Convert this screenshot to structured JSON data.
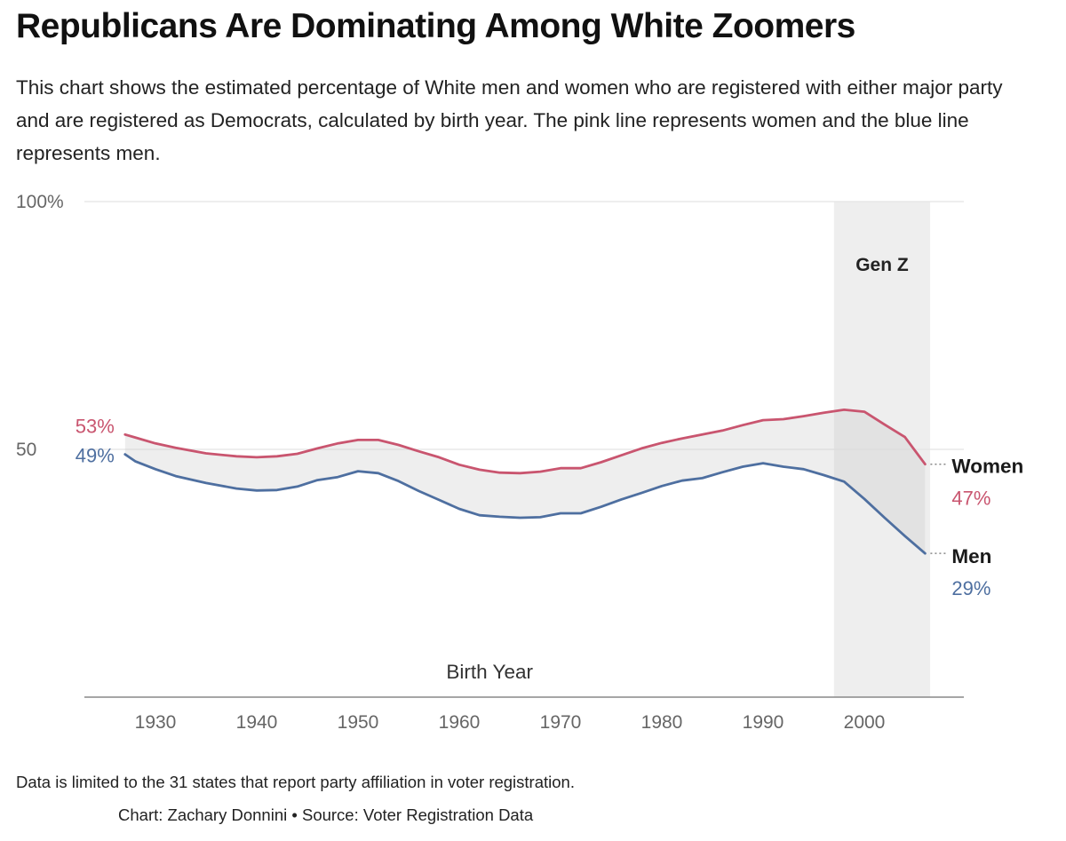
{
  "title": "Republicans Are Dominating Among White Zoomers",
  "subtitle": "This chart shows the estimated percentage of White men and women who are registered with either major party and are registered as Democrats, calculated by birth year. The pink line represents women and the blue line represents men.",
  "footnote": "Data is limited to the 31 states that report party affiliation in voter registration.",
  "credit": "Chart: Zachary Donnini • Source: Voter Registration Data",
  "chart_data": {
    "type": "line",
    "xlabel": "Birth Year",
    "ylabel": "",
    "xlim": [
      1920,
      2010
    ],
    "ylim": [
      0,
      100
    ],
    "grid": true,
    "y_ticks": [
      {
        "value": 100,
        "label": "100%"
      },
      {
        "value": 50,
        "label": "50"
      }
    ],
    "x_ticks": [
      {
        "value": 1930,
        "label": "1930"
      },
      {
        "value": 1940,
        "label": "1940"
      },
      {
        "value": 1950,
        "label": "1950"
      },
      {
        "value": 1960,
        "label": "1960"
      },
      {
        "value": 1970,
        "label": "1970"
      },
      {
        "value": 1980,
        "label": "1980"
      },
      {
        "value": 1990,
        "label": "1990"
      },
      {
        "value": 2000,
        "label": "2000"
      }
    ],
    "band": {
      "label": "Gen Z",
      "start": 1997,
      "end": 2006.5
    },
    "x": [
      1927,
      1928,
      1930,
      1932,
      1935,
      1938,
      1940,
      1942,
      1944,
      1946,
      1948,
      1950,
      1952,
      1954,
      1956,
      1958,
      1960,
      1962,
      1964,
      1966,
      1968,
      1970,
      1972,
      1974,
      1976,
      1978,
      1980,
      1982,
      1984,
      1986,
      1988,
      1990,
      1992,
      1994,
      1996,
      1998,
      2000,
      2002,
      2004,
      2006
    ],
    "series": [
      {
        "name": "Women",
        "color": "#c9556f",
        "start_label": "53%",
        "end_label": "47%",
        "values": [
          53,
          52.4,
          51.2,
          50.3,
          49.2,
          48.6,
          48.4,
          48.6,
          49.1,
          50.2,
          51.2,
          51.9,
          51.9,
          50.9,
          49.6,
          48.4,
          46.9,
          45.9,
          45.3,
          45.2,
          45.5,
          46.2,
          46.2,
          47.4,
          48.8,
          50.2,
          51.3,
          52.2,
          53.0,
          53.8,
          54.9,
          55.9,
          56.1,
          56.7,
          57.4,
          58.0,
          57.6,
          55.0,
          52.5,
          47
        ]
      },
      {
        "name": "Men",
        "color": "#4e6fa0",
        "start_label": "49%",
        "end_label": "29%",
        "values": [
          49,
          47.6,
          46.0,
          44.6,
          43.2,
          42.1,
          41.7,
          41.8,
          42.5,
          43.8,
          44.4,
          45.6,
          45.2,
          43.6,
          41.6,
          39.8,
          38.0,
          36.7,
          36.4,
          36.2,
          36.3,
          37.1,
          37.1,
          38.4,
          39.9,
          41.2,
          42.6,
          43.7,
          44.2,
          45.4,
          46.5,
          47.2,
          46.5,
          46.0,
          44.8,
          43.5,
          40.0,
          36.2,
          32.5,
          29
        ]
      }
    ]
  }
}
